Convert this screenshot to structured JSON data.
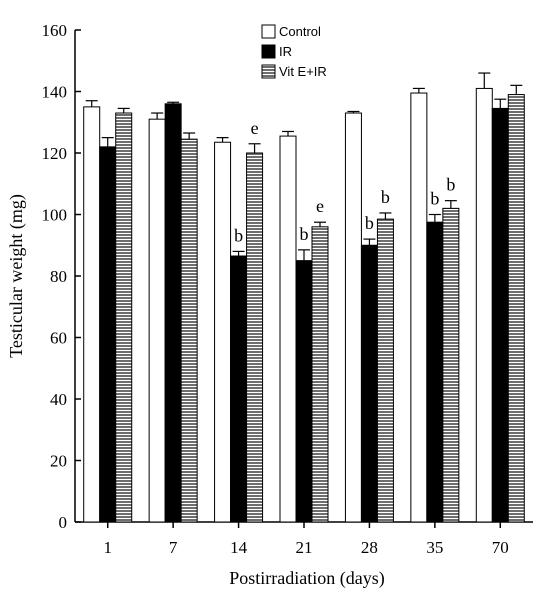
{
  "chart_data": {
    "type": "bar",
    "xlabel": "Postirradiation (days)",
    "ylabel": "Testicular weight (mg)",
    "ylim": [
      0,
      160
    ],
    "yticks": [
      0,
      20,
      40,
      60,
      80,
      100,
      120,
      140,
      160
    ],
    "categories": [
      "1",
      "7",
      "14",
      "21",
      "28",
      "35",
      "70"
    ],
    "legend_position": "top-center",
    "series": [
      {
        "name": "Control",
        "fill": "#ffffff",
        "pattern": "none",
        "values": [
          135,
          131,
          123.5,
          125.5,
          133,
          139.5,
          141
        ],
        "errors": [
          2,
          2,
          1.5,
          1.5,
          0.5,
          1.5,
          5
        ],
        "annotations": [
          "",
          "",
          "",
          "",
          "",
          "",
          ""
        ]
      },
      {
        "name": "IR",
        "fill": "#000000",
        "pattern": "none",
        "values": [
          122,
          136,
          86.5,
          85,
          90,
          97.5,
          134.5
        ],
        "errors": [
          3,
          0.5,
          1.5,
          3.5,
          2,
          2.5,
          3
        ],
        "annotations": [
          "",
          "",
          "b",
          "b",
          "b",
          "b",
          ""
        ]
      },
      {
        "name": "Vit E+IR",
        "fill": "#8a8a8a",
        "pattern": "horizontal-stripes",
        "values": [
          133,
          124.5,
          120,
          96,
          98.5,
          102,
          139
        ],
        "errors": [
          1.5,
          2,
          3,
          1.5,
          2,
          2.5,
          3
        ],
        "annotations": [
          "",
          "",
          "e",
          "e",
          "b",
          "b",
          ""
        ]
      }
    ]
  }
}
